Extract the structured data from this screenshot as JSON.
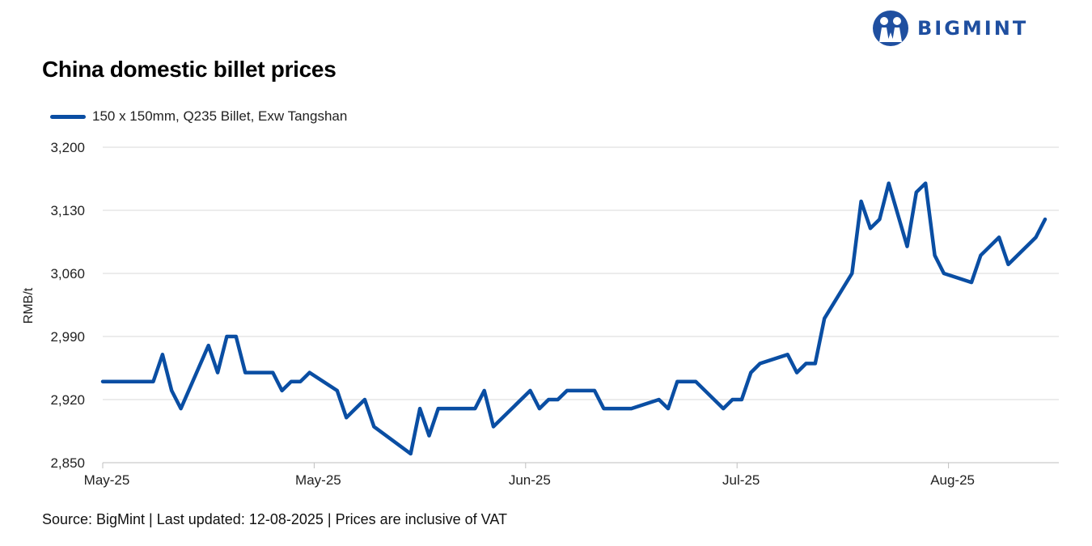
{
  "brand": {
    "name": "BIGMINT",
    "color": "#1f4fa0"
  },
  "title": "China domestic billet prices",
  "source_note": "Source: BigMint | Last updated: 12-08-2025 | Prices are inclusive of VAT",
  "chart_data": {
    "type": "line",
    "title": "China domestic billet prices",
    "ylabel": "RMB/t",
    "xlabel": "",
    "ylim": [
      2850,
      3200
    ],
    "yticks": [
      2850,
      2920,
      2990,
      3060,
      3130,
      3200
    ],
    "ytick_labels": [
      "2,850",
      "2,920",
      "2,990",
      "3,060",
      "3,130",
      "3,200"
    ],
    "xticks": [
      {
        "label": "May-25",
        "index": 0
      },
      {
        "label": "May-25",
        "index": 23
      },
      {
        "label": "Jun-25",
        "index": 46
      },
      {
        "label": "Jul-25",
        "index": 69
      },
      {
        "label": "Aug-25",
        "index": 92
      }
    ],
    "x_count": 104,
    "grid": true,
    "legend_position": "top-left",
    "series": [
      {
        "name": "150 x 150mm, Q235 Billet, Exw Tangshan",
        "color": "#0a4ea3",
        "points": [
          [
            0,
            2940
          ],
          [
            5.5,
            2940
          ],
          [
            6.5,
            2970
          ],
          [
            7.5,
            2930
          ],
          [
            8.5,
            2910
          ],
          [
            11.5,
            2980
          ],
          [
            12.5,
            2950
          ],
          [
            13.5,
            2990
          ],
          [
            14.5,
            2990
          ],
          [
            15.5,
            2950
          ],
          [
            18.5,
            2950
          ],
          [
            19.5,
            2930
          ],
          [
            20.5,
            2940
          ],
          [
            21.5,
            2940
          ],
          [
            22.5,
            2950
          ],
          [
            25.5,
            2930
          ],
          [
            26.5,
            2900
          ],
          [
            27.5,
            2910
          ],
          [
            28.5,
            2920
          ],
          [
            29.5,
            2890
          ],
          [
            33.5,
            2860
          ],
          [
            34.5,
            2910
          ],
          [
            35.5,
            2880
          ],
          [
            36.5,
            2910
          ],
          [
            40.5,
            2910
          ],
          [
            41.5,
            2930
          ],
          [
            42.5,
            2890
          ],
          [
            46.5,
            2930
          ],
          [
            47.5,
            2910
          ],
          [
            48.5,
            2920
          ],
          [
            49.5,
            2920
          ],
          [
            50.5,
            2930
          ],
          [
            53.5,
            2930
          ],
          [
            54.5,
            2910
          ],
          [
            57.5,
            2910
          ],
          [
            60.5,
            2920
          ],
          [
            61.5,
            2910
          ],
          [
            62.5,
            2940
          ],
          [
            64.5,
            2940
          ],
          [
            67.5,
            2910
          ],
          [
            68.5,
            2920
          ],
          [
            69.5,
            2920
          ],
          [
            70.5,
            2950
          ],
          [
            71.5,
            2960
          ],
          [
            74.5,
            2970
          ],
          [
            75.5,
            2950
          ],
          [
            76.5,
            2960
          ],
          [
            77.5,
            2960
          ],
          [
            78.5,
            3010
          ],
          [
            81.5,
            3060
          ],
          [
            82.5,
            3140
          ],
          [
            83.5,
            3110
          ],
          [
            84.5,
            3120
          ],
          [
            85.5,
            3160
          ],
          [
            87.5,
            3090
          ],
          [
            88.5,
            3150
          ],
          [
            89.5,
            3160
          ],
          [
            90.5,
            3080
          ],
          [
            91.5,
            3060
          ],
          [
            94.5,
            3050
          ],
          [
            95.5,
            3080
          ],
          [
            97.5,
            3100
          ],
          [
            98.5,
            3070
          ],
          [
            101.5,
            3100
          ],
          [
            102.5,
            3120
          ]
        ]
      }
    ]
  }
}
